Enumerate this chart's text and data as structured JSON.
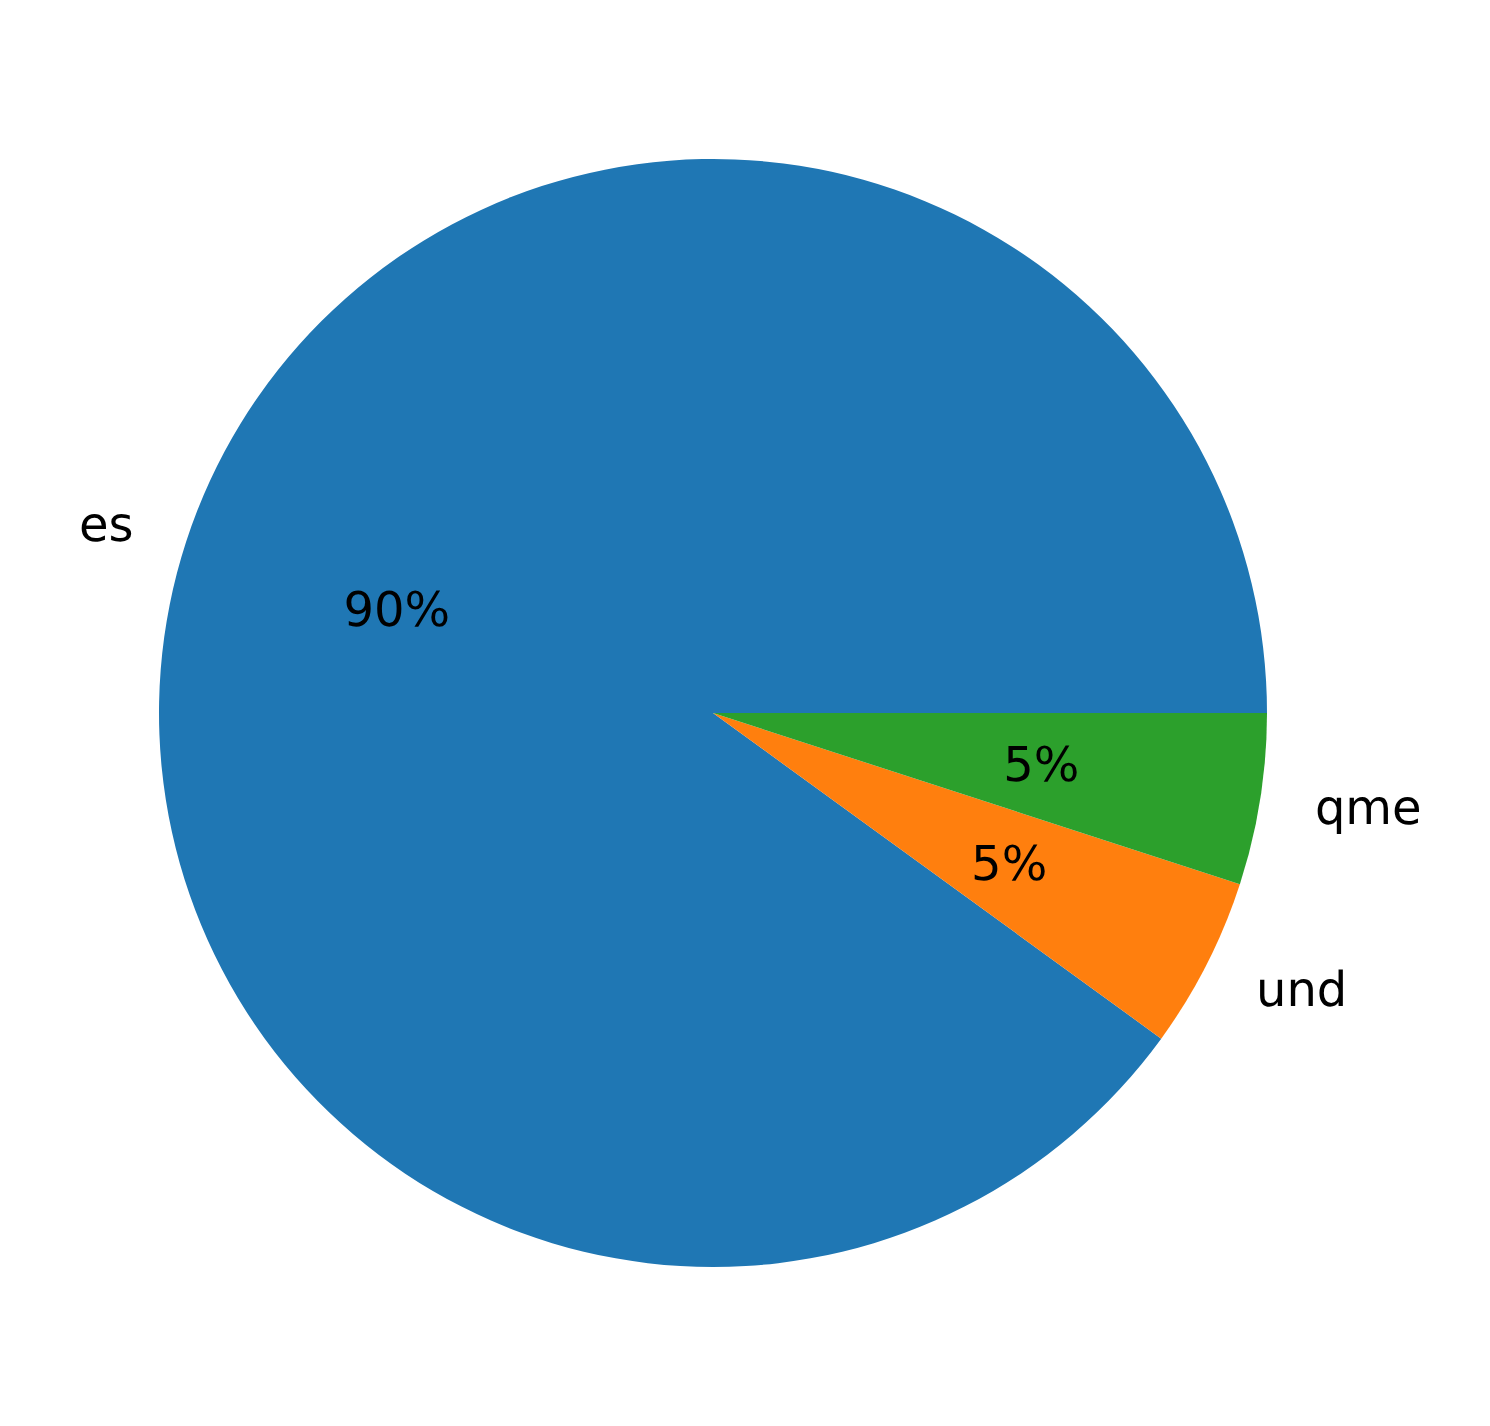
{
  "chart_data": {
    "type": "pie",
    "categories": [
      "es",
      "und",
      "qme"
    ],
    "values": [
      90,
      5,
      5
    ],
    "colors": [
      "#1f77b4",
      "#ff7f0e",
      "#2ca02c"
    ],
    "value_labels": [
      "90%",
      "5%",
      "5%"
    ]
  }
}
